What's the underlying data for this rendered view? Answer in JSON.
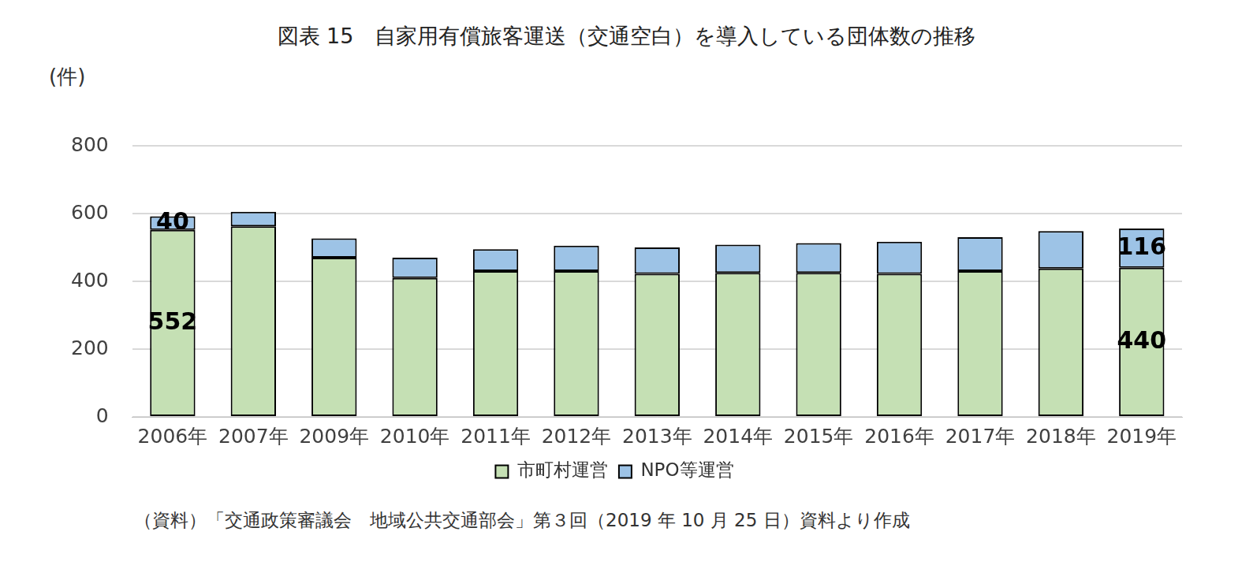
{
  "chart_data": {
    "type": "bar",
    "title": "図表 15　自家用有償旅客運送（交通空白）を導入している団体数の推移",
    "y_label": "(件)",
    "note": "（資料）「交通政策審議会　地域公共交通部会」第３回（2019 年 10 月 25 日）資料より作成",
    "categories": [
      "2006年",
      "2007年",
      "2009年",
      "2010年",
      "2011年",
      "2012年",
      "2013年",
      "2014年",
      "2015年",
      "2016年",
      "2017年",
      "2018年",
      "2019年"
    ],
    "series": [
      {
        "name": "市町村運営",
        "color": "#c5e0b4",
        "values": [
          552,
          562,
          470,
          410,
          430,
          430,
          422,
          425,
          425,
          422,
          430,
          438,
          440
        ],
        "value_labels": [
          "552",
          null,
          null,
          null,
          null,
          null,
          null,
          null,
          null,
          null,
          null,
          null,
          "440"
        ]
      },
      {
        "name": "NPO等運営",
        "color": "#9dc3e6",
        "values": [
          40,
          43,
          57,
          60,
          65,
          75,
          78,
          83,
          88,
          95,
          100,
          110,
          116
        ],
        "value_labels": [
          "40",
          null,
          null,
          null,
          null,
          null,
          null,
          null,
          null,
          null,
          null,
          null,
          "116"
        ]
      }
    ],
    "stacked": true,
    "data_labels": true,
    "ylim": [
      0,
      800
    ],
    "yticks": [
      0,
      200,
      400,
      600,
      800
    ],
    "grid": true,
    "legend": "bottom"
  }
}
